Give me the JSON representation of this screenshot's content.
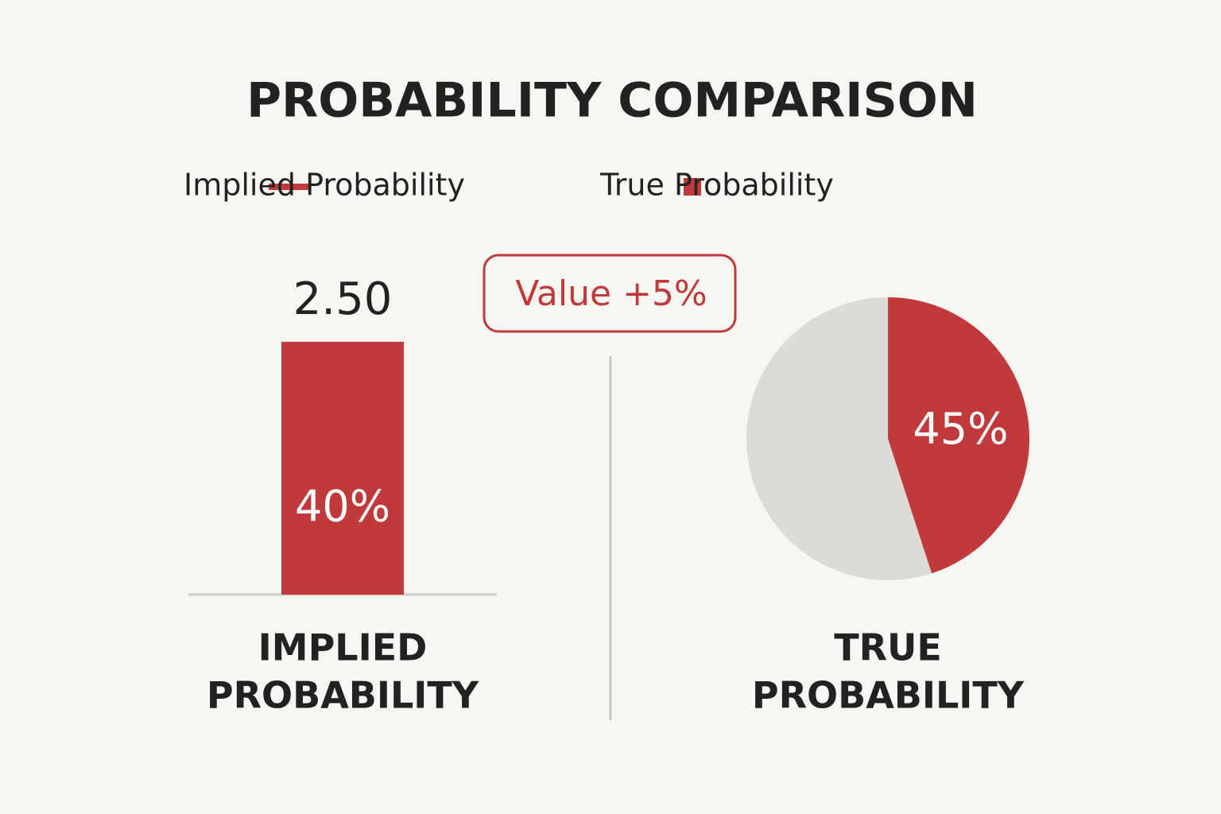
{
  "title": "PROBABILITY COMPARISON",
  "legend": [
    {
      "label": "Implied Probability",
      "marker": "line",
      "color": "#c0393b"
    },
    {
      "label": "True Probability",
      "marker": "square",
      "color": "#c0393b"
    }
  ],
  "annotation": "Value +5%",
  "chart_data": [
    {
      "type": "bar",
      "label_lines": [
        "IMPLIED",
        "PROBABILITY"
      ],
      "odds": "2.50",
      "values": [
        40
      ],
      "value_labels": [
        "40%"
      ],
      "color": "#c0393b"
    },
    {
      "type": "pie",
      "label_lines": [
        "TRUE",
        "PROBABILITY"
      ],
      "values": [
        45,
        55
      ],
      "value_labels": [
        "45%",
        null
      ],
      "colors": [
        "#c0393b",
        "#dddbd6"
      ]
    }
  ]
}
